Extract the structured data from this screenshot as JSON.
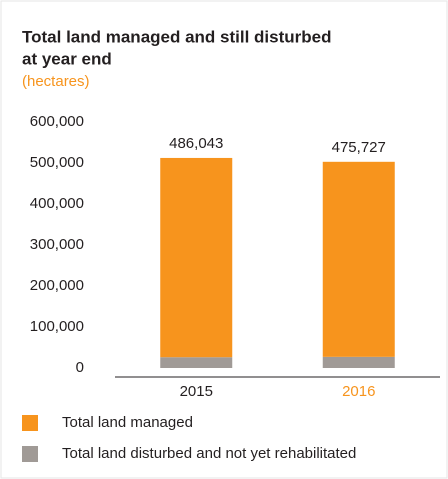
{
  "chart_data": {
    "type": "stacked_bar",
    "title_lines": [
      "Total land managed and still disturbed",
      "at year end"
    ],
    "subtitle": "(hectares)",
    "categories": [
      "2015",
      "2016"
    ],
    "category_colors": [
      "#231f20",
      "#f7941d"
    ],
    "series": [
      {
        "name": "Total land disturbed and not yet rehabilitated",
        "color": "#a09a96",
        "values": [
          26287,
          27202
        ],
        "value_labels": [
          "26,287",
          "27,202"
        ]
      },
      {
        "name": "Total land managed",
        "color": "#f7941d",
        "values": [
          486043,
          475727
        ],
        "value_labels": [
          "486,043",
          "475,727"
        ]
      }
    ],
    "legend_order": [
      1,
      0
    ],
    "ylim": [
      0,
      600000
    ],
    "yticks": [
      0,
      {
        "value": 100000,
        "label": "100,000"
      },
      {
        "value": 200000,
        "label": "200,000"
      },
      {
        "value": 300000,
        "label": "300,000"
      },
      {
        "value": 400000,
        "label": "400,000"
      },
      {
        "value": 500000,
        "label": "500,000"
      },
      {
        "value": 600000,
        "label": "600,000"
      }
    ]
  }
}
